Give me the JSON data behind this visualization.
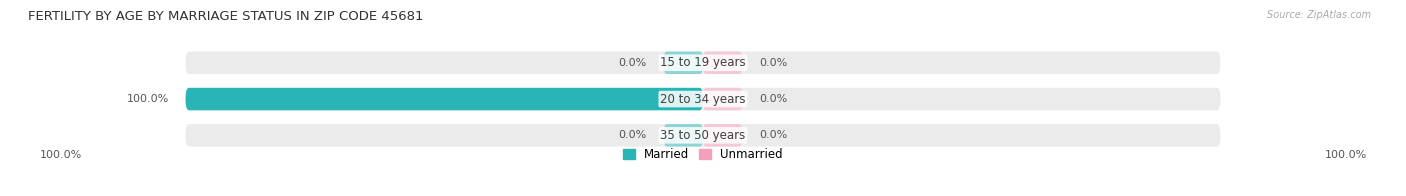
{
  "title": "FERTILITY BY AGE BY MARRIAGE STATUS IN ZIP CODE 45681",
  "source": "Source: ZipAtlas.com",
  "categories": [
    "15 to 19 years",
    "20 to 34 years",
    "35 to 50 years"
  ],
  "married_values": [
    0.0,
    100.0,
    0.0
  ],
  "unmarried_values": [
    0.0,
    0.0,
    0.0
  ],
  "married_color": "#29b5b5",
  "married_light_color": "#8ed4d4",
  "unmarried_color": "#f5a0bb",
  "unmarried_light_color": "#f5c8d8",
  "bar_bg_color": "#ebebeb",
  "bar_bg_color2": "#e2e2e2",
  "background_color": "#ffffff",
  "left_married_labels": [
    "0.0%",
    "100.0%",
    "0.0%"
  ],
  "right_unmarried_labels": [
    "0.0%",
    "0.0%",
    "0.0%"
  ],
  "bottom_left_label": "100.0%",
  "bottom_right_label": "100.0%",
  "title_fontsize": 9.5,
  "label_fontsize": 8.0,
  "cat_fontsize": 8.5,
  "legend_fontsize": 8.5,
  "bar_height": 0.62,
  "max_bar_half": 46.0
}
